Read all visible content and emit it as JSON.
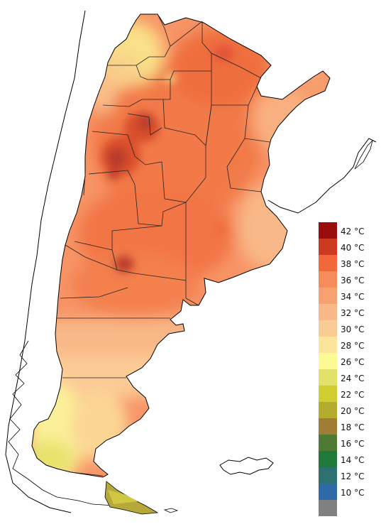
{
  "map": {
    "colors": {
      "sea": "#ffffff",
      "coast": "#000000",
      "borders": "#333333",
      "base": "#f79060",
      "hot": "#f06a3c",
      "very_hot": "#d2452a",
      "peak": "#b8372a",
      "cool_north": "#f7de80",
      "cool_south": "#f8e88a",
      "mild": "#f9b887",
      "cold_tip": "#cfc840",
      "fuego": "#aaa030"
    }
  },
  "legend": {
    "items": [
      {
        "label": "42 °C",
        "color": "#9b0d0d"
      },
      {
        "label": "40 °C",
        "color": "#cc3a20"
      },
      {
        "label": "38 °C",
        "color": "#f2683a"
      },
      {
        "label": "36 °C",
        "color": "#f58c5a"
      },
      {
        "label": "34 °C",
        "color": "#f7a172"
      },
      {
        "label": "32 °C",
        "color": "#f9b887"
      },
      {
        "label": "30 °C",
        "color": "#fbcb96"
      },
      {
        "label": "28 °C",
        "color": "#fde49b"
      },
      {
        "label": "26 °C",
        "color": "#fbfa94"
      },
      {
        "label": "24 °C",
        "color": "#e2e26a"
      },
      {
        "label": "22 °C",
        "color": "#cfcd2f"
      },
      {
        "label": "20 °C",
        "color": "#b4ac2e"
      },
      {
        "label": "18 °C",
        "color": "#a07c35"
      },
      {
        "label": "16 °C",
        "color": "#4f7a34"
      },
      {
        "label": "14 °C",
        "color": "#1f7a3a"
      },
      {
        "label": "12 °C",
        "color": "#2f7070"
      },
      {
        "label": "10 °C",
        "color": "#2f6aa8"
      },
      {
        "label": "",
        "color": "#808080"
      }
    ]
  }
}
